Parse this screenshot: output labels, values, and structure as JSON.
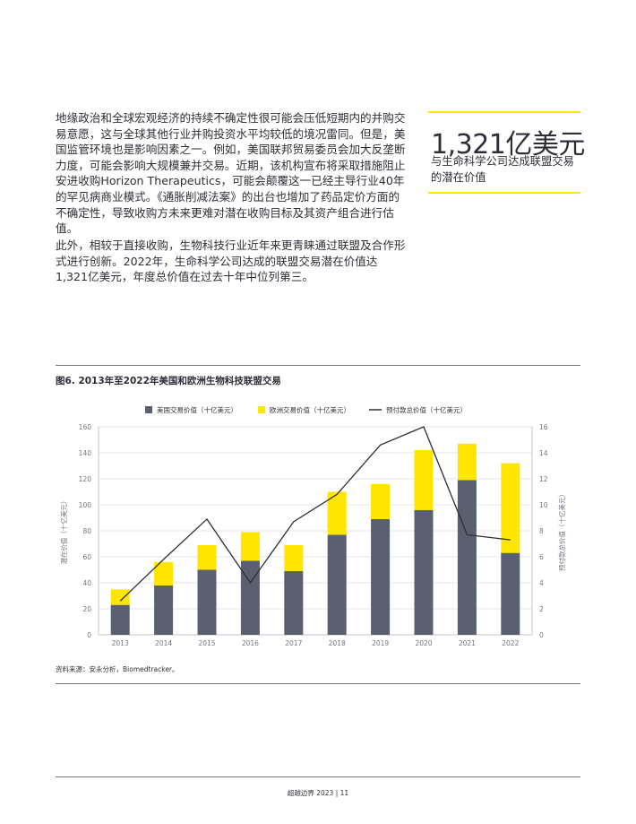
{
  "body": {
    "paragraph_1": "地缘政治和全球宏观经济的持续不确定性很可能会压低短期内的并购交易意愿，这与全球其他行业并购投资水平均较低的境况雷同。但是，美国监管环境也是影响因素之一。例如，美国联邦贸易委员会加大反垄断力度，可能会影响大规模兼并交易。近期，该机构宣布将采取措施阻止安进收购Horizon Therapeutics，可能会颠覆这一已经主导行业40年的罕见病商业模式。《通胀削减法案》的出台也增加了药品定价方面的不确定性，导致收购方未来更难对潜在收购目标及其资产组合进行估值。",
    "paragraph_2": "此外，相较于直接收购，生物科技行业近年来更青睐通过联盟及合作形式进行创新。2022年，生命科学公司达成的联盟交易潜在价值达1,321亿美元，年度总价值在过去十年中位列第三。"
  },
  "callout": {
    "value": "1,321亿美元",
    "caption": "与生命科学公司达成联盟交易的潜在价值"
  },
  "figure": {
    "title": "图6. 2013年至2022年美国和欧洲生物科技联盟交易",
    "source": "资料来源：安永分析，Biomedtracker。"
  },
  "footer": {
    "text": "超越边界 2023 | 11"
  },
  "chart_data": {
    "type": "bar",
    "stacked": true,
    "categories": [
      "2013",
      "2014",
      "2015",
      "2016",
      "2017",
      "2018",
      "2019",
      "2020",
      "2021",
      "2022"
    ],
    "series": [
      {
        "name": "美国交易价值（十亿美元）",
        "type": "bar",
        "axis": "left",
        "color": "#5a6070",
        "values": [
          23,
          38,
          50,
          57,
          49,
          77,
          89,
          96,
          119,
          63
        ]
      },
      {
        "name": "欧洲交易价值（十亿美元）",
        "type": "bar",
        "axis": "left",
        "color": "#ffe600",
        "values": [
          12,
          18,
          19,
          22,
          20,
          33,
          27,
          46,
          28,
          69
        ]
      },
      {
        "name": "预付款总价值（十亿美元）",
        "type": "line",
        "axis": "right",
        "color": "#2e2e38",
        "values": [
          2.6,
          5.8,
          8.9,
          4.0,
          8.7,
          10.8,
          14.6,
          16.0,
          7.7,
          7.3
        ]
      }
    ],
    "ylabel": "潜在价值（十亿美元）",
    "y2label": "预付款总价值（十亿美元）",
    "ylim": [
      0,
      160
    ],
    "y2lim": [
      0,
      16
    ],
    "yticks": [
      0,
      20,
      40,
      60,
      80,
      100,
      120,
      140,
      160
    ],
    "y2ticks": [
      0,
      2,
      4,
      6,
      8,
      10,
      12,
      14,
      16
    ],
    "grid": "horizontal",
    "legend": "top"
  }
}
